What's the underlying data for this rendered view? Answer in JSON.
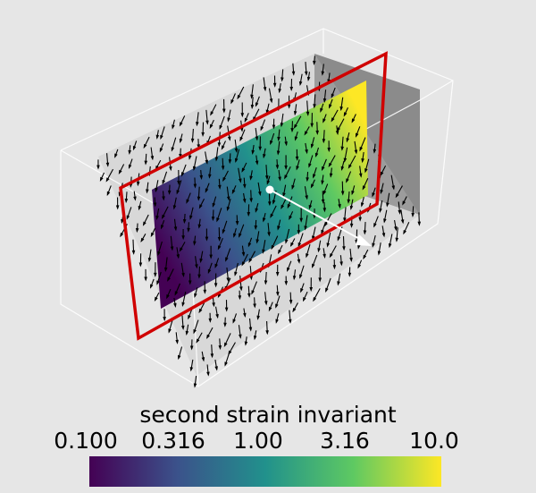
{
  "colorbar": {
    "title": "second strain invariant",
    "ticks": [
      "0.100",
      "0.316",
      "1.00",
      "3.16",
      "10.0"
    ],
    "range": [
      0.1,
      10.0
    ],
    "scale": "log",
    "colormap": [
      "#440154",
      "#3b528b",
      "#21918c",
      "#5ec962",
      "#fde725"
    ]
  },
  "scene": {
    "background": "#e6e6e6",
    "outline_color": "#ffffff",
    "plane_outline_color": "#d00000",
    "arrow_color": "#000000"
  }
}
